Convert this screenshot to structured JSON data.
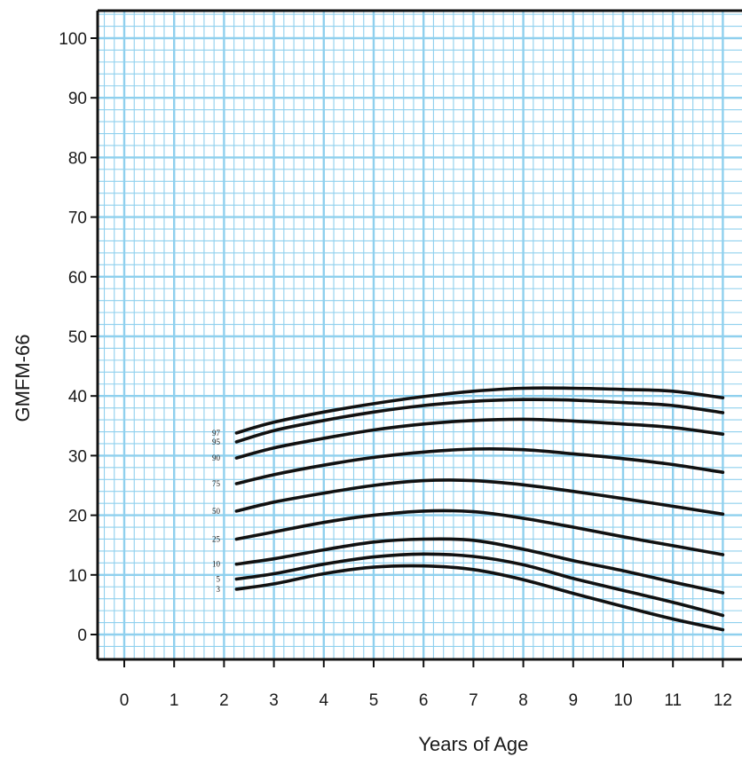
{
  "chart_data": {
    "type": "line",
    "title": "",
    "xlabel": "Years of Age",
    "ylabel": "GMFM-66",
    "xlim": [
      -0.5,
      12
    ],
    "ylim": [
      -4,
      104
    ],
    "x_ticks": [
      "0",
      "1",
      "2",
      "3",
      "4",
      "5",
      "6",
      "7",
      "8",
      "9",
      "10",
      "11",
      "12"
    ],
    "y_ticks": [
      "0",
      "10",
      "20",
      "30",
      "40",
      "50",
      "60",
      "70",
      "80",
      "90",
      "100"
    ],
    "grid": true,
    "grid_color": "#8fd0ee",
    "line_color": "#111111",
    "x": [
      2.25,
      3,
      4,
      5,
      6,
      7,
      8,
      9,
      10,
      11,
      12
    ],
    "series": [
      {
        "name": "97",
        "values": [
          33.8,
          35.6,
          37.3,
          38.7,
          39.9,
          40.8,
          41.3,
          41.3,
          41.1,
          40.8,
          39.7
        ]
      },
      {
        "name": "95",
        "values": [
          32.3,
          34.2,
          35.9,
          37.3,
          38.4,
          39.1,
          39.4,
          39.3,
          38.9,
          38.4,
          37.2
        ]
      },
      {
        "name": "90",
        "values": [
          29.6,
          31.3,
          32.9,
          34.3,
          35.3,
          35.9,
          36.1,
          35.8,
          35.3,
          34.7,
          33.6
        ]
      },
      {
        "name": "75",
        "values": [
          25.3,
          26.8,
          28.4,
          29.7,
          30.6,
          31.1,
          31.0,
          30.3,
          29.5,
          28.5,
          27.2
        ]
      },
      {
        "name": "50",
        "values": [
          20.7,
          22.2,
          23.7,
          25.0,
          25.8,
          25.8,
          25.1,
          24.0,
          22.8,
          21.5,
          20.2
        ]
      },
      {
        "name": "25",
        "values": [
          16.0,
          17.2,
          18.8,
          20.0,
          20.7,
          20.6,
          19.5,
          18.0,
          16.4,
          14.9,
          13.4
        ]
      },
      {
        "name": "10",
        "values": [
          11.8,
          12.7,
          14.2,
          15.5,
          16.0,
          15.8,
          14.3,
          12.4,
          10.7,
          8.8,
          7.0
        ]
      },
      {
        "name": "5",
        "values": [
          9.3,
          10.2,
          11.8,
          13.0,
          13.5,
          13.1,
          11.7,
          9.4,
          7.4,
          5.4,
          3.2
        ]
      },
      {
        "name": "3",
        "values": [
          7.6,
          8.5,
          10.2,
          11.3,
          11.5,
          10.9,
          9.2,
          6.9,
          4.7,
          2.6,
          0.8
        ]
      }
    ]
  }
}
